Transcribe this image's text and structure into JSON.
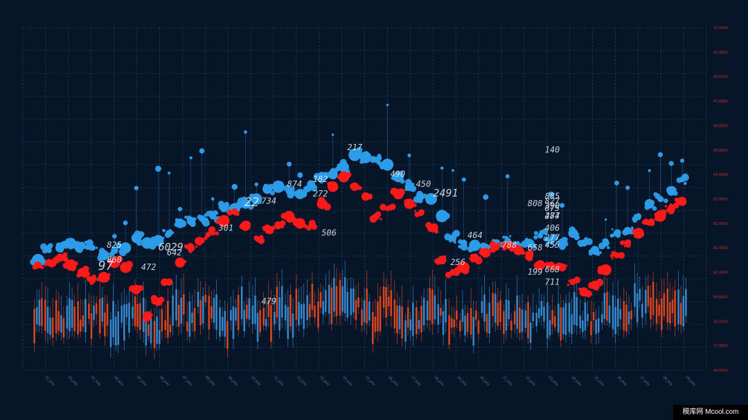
{
  "watermark": "模库网 Mcool.com",
  "colors": {
    "background": "#071529",
    "grid": "#2b4461",
    "blue": "#2d9ce8",
    "red": "#ff1a1a",
    "candle_red": "#e8481e",
    "candle_blue": "#3b8fd6",
    "ytick": "#c8302c",
    "xtick": "#5f7896"
  },
  "chart_data": {
    "type": "scatter",
    "y_axis_side": "right",
    "ylim": [
      56.0,
      70.0
    ],
    "y_ticks": [
      "56.0000",
      "57.0000",
      "58.0000",
      "59.0000",
      "60.0000",
      "61.0000",
      "62.0000",
      "63.0000",
      "64.0000",
      "65.0000",
      "66.0000",
      "67.0000",
      "68.0000",
      "69.0000",
      "70.0000"
    ],
    "x_ticks": [
      "31_July",
      "03_July",
      "01_July",
      "29_July",
      "05_July",
      "06_July",
      "07_July",
      "08_July",
      "09_July",
      "10_July",
      "11_July",
      "12_July",
      "13_July",
      "14_July",
      "15_July",
      "16_July",
      "17_July",
      "18_July",
      "19_July",
      "20_July",
      "21_July",
      "22_July",
      "23_July",
      "24_July",
      "25_July",
      "26_July",
      "27_July",
      "28_July",
      "29_July"
    ],
    "grid": true,
    "series": [
      {
        "values": [
          60.5,
          60.9,
          61.0,
          61.2,
          61.1,
          61.0,
          60.7,
          60.9,
          61.0,
          61.4,
          61.2,
          61.3,
          61.6,
          62.0,
          62.1,
          62.2,
          62.3,
          62.6,
          62.6,
          62.8,
          63.0,
          63.4,
          63.5,
          63.3,
          63.2,
          63.6,
          63.9,
          64.0,
          64.3,
          64.8,
          64.7,
          64.6,
          64.4,
          63.9,
          63.5,
          63.1,
          63.0,
          62.3,
          61.4,
          61.2,
          61.1,
          61.0,
          61.2,
          61.3,
          61.1,
          61.2,
          61.5,
          61.3,
          61.2,
          61.6,
          61.2,
          60.9,
          61.2,
          61.6,
          61.7,
          62.3,
          62.8,
          63.0,
          63.3,
          63.8
        ]
      },
      {
        "values": [
          60.3,
          60.4,
          60.6,
          60.3,
          60.0,
          59.7,
          59.8,
          60.4,
          60.2,
          59.3,
          58.2,
          58.8,
          59.6,
          60.4,
          61.0,
          61.3,
          61.6,
          62.1,
          62.5,
          61.9,
          61.4,
          61.8,
          61.9,
          62.3,
          62.0,
          61.9,
          62.8,
          63.5,
          63.9,
          63.5,
          63.1,
          62.3,
          62.6,
          63.2,
          62.8,
          62.4,
          61.8,
          60.5,
          60.0,
          60.2,
          60.6,
          60.8,
          61.0,
          61.1,
          60.9,
          60.7,
          60.3,
          60.3,
          60.2,
          59.6,
          59.2,
          59.5,
          60.1,
          60.7,
          61.2,
          61.6,
          62.0,
          62.3,
          62.6,
          62.9
        ]
      }
    ],
    "candles": [
      58.2,
      57.9,
      58.0,
      58.3,
      57.9,
      58.2,
      58.1,
      57.8,
      58.1,
      58.4,
      58.0,
      57.7,
      58.1,
      58.3,
      57.9,
      58.6,
      58.2,
      57.8,
      58.0,
      58.4,
      58.1,
      58.3,
      58.5,
      58.2,
      58.4,
      58.7,
      58.6,
      58.8,
      58.9,
      58.5,
      58.3,
      58.1,
      58.6,
      58.2,
      57.9,
      58.2,
      58.4,
      58.3,
      58.0,
      58.1,
      57.9,
      58.2,
      58.4,
      58.2,
      58.0,
      57.9,
      58.2,
      58.1,
      57.8,
      58.2,
      57.9,
      58.1,
      58.3,
      58.0,
      58.5,
      58.8,
      58.9,
      58.6,
      58.7,
      58.5
    ],
    "annotations": [
      {
        "text": "217",
        "x": 36,
        "y": 65.0
      },
      {
        "text": "490",
        "x": 41,
        "y": 63.9
      },
      {
        "text": "450",
        "x": 44,
        "y": 63.5
      },
      {
        "text": "2491",
        "x": 46,
        "y": 63.1
      },
      {
        "text": "182",
        "x": 32,
        "y": 63.7
      },
      {
        "text": "874",
        "x": 29,
        "y": 63.5
      },
      {
        "text": "272",
        "x": 32,
        "y": 63.1
      },
      {
        "text": "22",
        "x": 24,
        "y": 62.7
      },
      {
        "text": "734",
        "x": 26,
        "y": 62.8
      },
      {
        "text": "301",
        "x": 21,
        "y": 61.7
      },
      {
        "text": "506",
        "x": 33,
        "y": 61.5
      },
      {
        "text": "825",
        "x": 8,
        "y": 61.0
      },
      {
        "text": "860",
        "x": 8,
        "y": 60.4
      },
      {
        "text": "472",
        "x": 12,
        "y": 60.1
      },
      {
        "text": "97",
        "x": 7,
        "y": 60.1
      },
      {
        "text": "6029",
        "x": 14,
        "y": 60.9
      },
      {
        "text": "642",
        "x": 15,
        "y": 60.7
      },
      {
        "text": "479",
        "x": 26,
        "y": 58.7
      },
      {
        "text": "256",
        "x": 48,
        "y": 60.3
      },
      {
        "text": "464",
        "x": 50,
        "y": 61.4
      },
      {
        "text": "788",
        "x": 54,
        "y": 61.0
      },
      {
        "text": "658",
        "x": 57,
        "y": 60.9
      },
      {
        "text": "808",
        "x": 57,
        "y": 62.7
      },
      {
        "text": "287",
        "x": 61,
        "y": 62.2
      },
      {
        "text": "199",
        "x": 57,
        "y": 59.9
      },
      {
        "text": "668",
        "x": 63,
        "y": 60.0
      },
      {
        "text": "711",
        "x": 64,
        "y": 59.5
      },
      {
        "text": "140",
        "x": 72,
        "y": 64.9
      },
      {
        "text": "827",
        "x": 70,
        "y": 62.8
      },
      {
        "text": "390",
        "x": 72,
        "y": 62.6
      },
      {
        "text": "875",
        "x": 73,
        "y": 62.5
      },
      {
        "text": "474",
        "x": 70,
        "y": 62.2
      },
      {
        "text": "406",
        "x": 69,
        "y": 61.7
      },
      {
        "text": "277",
        "x": 70,
        "y": 61.3
      },
      {
        "text": "455",
        "x": 68,
        "y": 61.0
      },
      {
        "text": "885",
        "x": 75,
        "y": 63.0
      }
    ]
  }
}
